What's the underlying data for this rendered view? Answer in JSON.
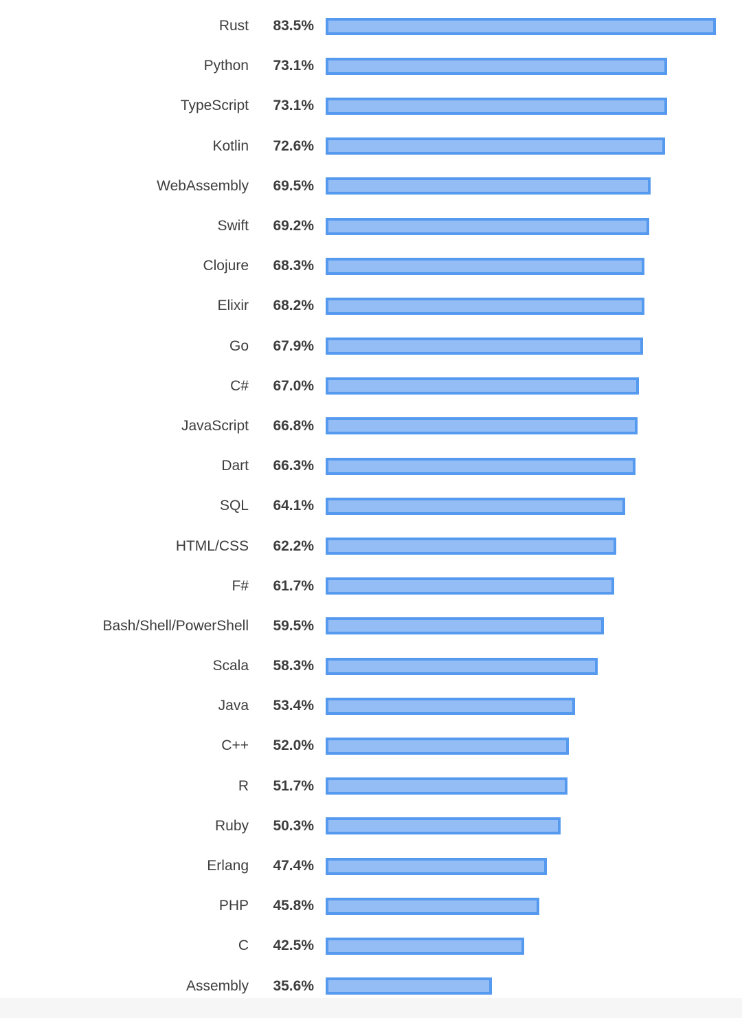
{
  "chart_data": {
    "type": "bar",
    "orientation": "horizontal",
    "title": "",
    "xlabel": "",
    "ylabel": "",
    "xlim": [
      0,
      100
    ],
    "grid": false,
    "legend": false,
    "categories": [
      "Rust",
      "Python",
      "TypeScript",
      "Kotlin",
      "WebAssembly",
      "Swift",
      "Clojure",
      "Elixir",
      "Go",
      "C#",
      "JavaScript",
      "Dart",
      "SQL",
      "HTML/CSS",
      "F#",
      "Bash/Shell/PowerShell",
      "Scala",
      "Java",
      "C++",
      "R",
      "Ruby",
      "Erlang",
      "PHP",
      "C",
      "Assembly"
    ],
    "values": [
      83.5,
      73.1,
      73.1,
      72.6,
      69.5,
      69.2,
      68.3,
      68.2,
      67.9,
      67.0,
      66.8,
      66.3,
      64.1,
      62.2,
      61.7,
      59.5,
      58.3,
      53.4,
      52.0,
      51.7,
      50.3,
      47.4,
      45.8,
      42.5,
      35.6
    ],
    "value_labels": [
      "83.5%",
      "73.1%",
      "73.1%",
      "72.6%",
      "69.5%",
      "69.2%",
      "68.3%",
      "68.2%",
      "67.9%",
      "67.0%",
      "66.8%",
      "66.3%",
      "64.1%",
      "62.2%",
      "61.7%",
      "59.5%",
      "58.3%",
      "53.4%",
      "52.0%",
      "51.7%",
      "50.3%",
      "47.4%",
      "45.8%",
      "42.5%",
      "35.6%"
    ],
    "colors": {
      "bar_fill": "#94bdf5",
      "bar_border": "#559aef",
      "label_text": "#3d3d3d",
      "value_text": "#3d3d3d",
      "background": "#ffffff",
      "footer_band": "#f6f6f6"
    }
  }
}
